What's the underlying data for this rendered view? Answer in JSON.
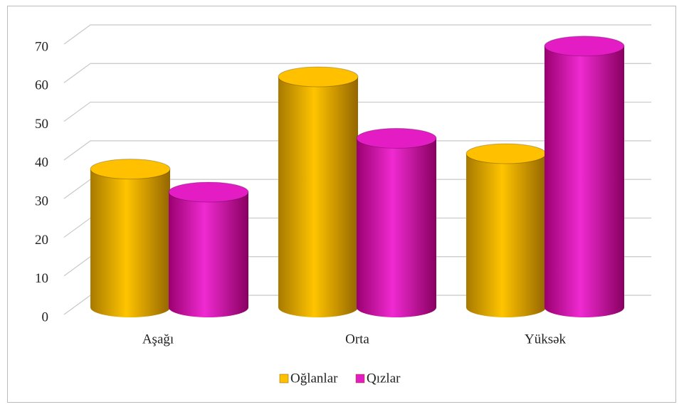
{
  "chart_data": {
    "type": "bar3d",
    "categories": [
      "Aşağı",
      "Orta",
      "Yüksək"
    ],
    "series": [
      {
        "name": "Oğlanlar",
        "color": "#ffc000",
        "values": [
          36,
          60,
          40
        ]
      },
      {
        "name": "Qızlar",
        "color": "#e41cc4",
        "values": [
          30,
          44,
          68
        ]
      }
    ],
    "ylim": [
      0,
      70
    ],
    "yticks": [
      0,
      10,
      20,
      30,
      40,
      50,
      60,
      70
    ],
    "grid": true,
    "legend": "bottom"
  }
}
